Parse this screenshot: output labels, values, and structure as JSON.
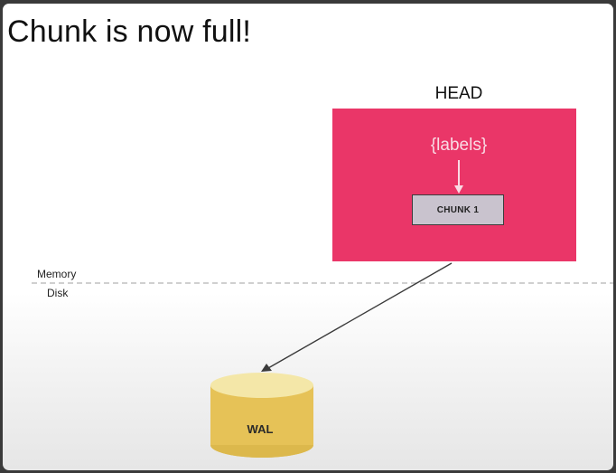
{
  "slide": {
    "title": "Chunk is now full!"
  },
  "head": {
    "label": "HEAD",
    "labels_text": "{labels}",
    "chunk_label": "CHUNK 1",
    "color": "#ea3668"
  },
  "boundary": {
    "memory_label": "Memory",
    "disk_label": "Disk"
  },
  "wal": {
    "label": "WAL",
    "color": "#e8c559"
  }
}
